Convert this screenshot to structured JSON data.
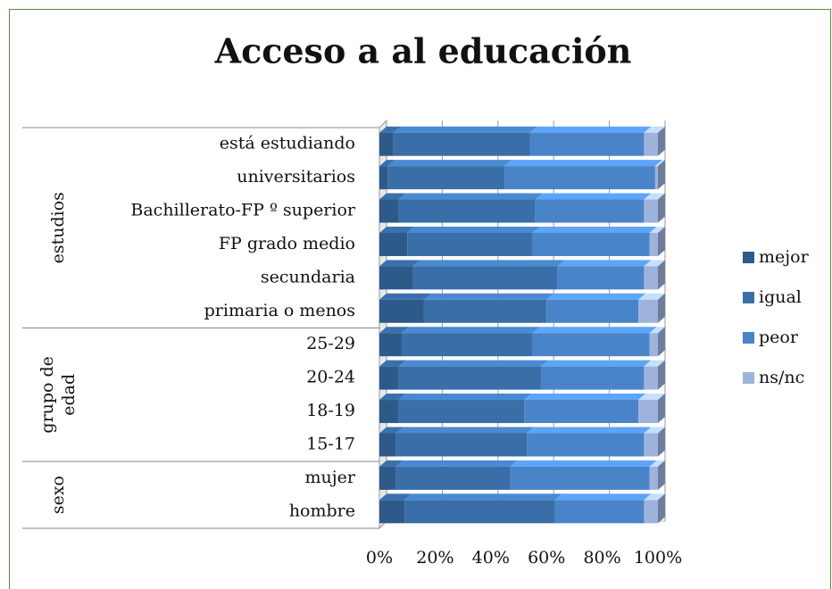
{
  "chart_data": {
    "type": "stacked_barh",
    "title": "Acceso a al educación",
    "categories": [
      "está estudiando",
      "universitarios",
      "Bachillerato-FP º superior",
      "FP grado medio",
      "secundaria",
      "primaria o menos",
      "25-29",
      "20-24",
      "18-19",
      "15-17",
      "mujer",
      "hombre"
    ],
    "groups": [
      {
        "label": [
          "estudios"
        ],
        "start": 0,
        "end": 5
      },
      {
        "label": [
          "grupo de",
          "edad"
        ],
        "start": 6,
        "end": 9
      },
      {
        "label": [
          "sexo"
        ],
        "start": 10,
        "end": 11
      }
    ],
    "series": [
      {
        "name": "mejor",
        "color": "#2e5a8a",
        "values": [
          5,
          3,
          7,
          10,
          12,
          16,
          8,
          7,
          7,
          6,
          6,
          9
        ]
      },
      {
        "name": "igual",
        "color": "#3a6ea8",
        "values": [
          49,
          42,
          49,
          45,
          52,
          44,
          47,
          51,
          45,
          47,
          41,
          54
        ]
      },
      {
        "name": "peor",
        "color": "#4a84c8",
        "values": [
          41,
          54,
          39,
          42,
          31,
          33,
          42,
          37,
          41,
          42,
          50,
          32
        ]
      },
      {
        "name": "ns/nc",
        "color": "#9db3dc",
        "values": [
          5,
          1,
          5,
          3,
          5,
          7,
          3,
          5,
          7,
          5,
          3,
          5
        ]
      }
    ],
    "xlim": [
      0,
      100
    ],
    "xticks": [
      {
        "value": 0,
        "label": "0%"
      },
      {
        "value": 20,
        "label": "20%"
      },
      {
        "value": 40,
        "label": "40%"
      },
      {
        "value": 60,
        "label": "60%"
      },
      {
        "value": 80,
        "label": "80%"
      },
      {
        "value": 100,
        "label": "100%"
      }
    ],
    "grid": true,
    "legend": "right"
  }
}
